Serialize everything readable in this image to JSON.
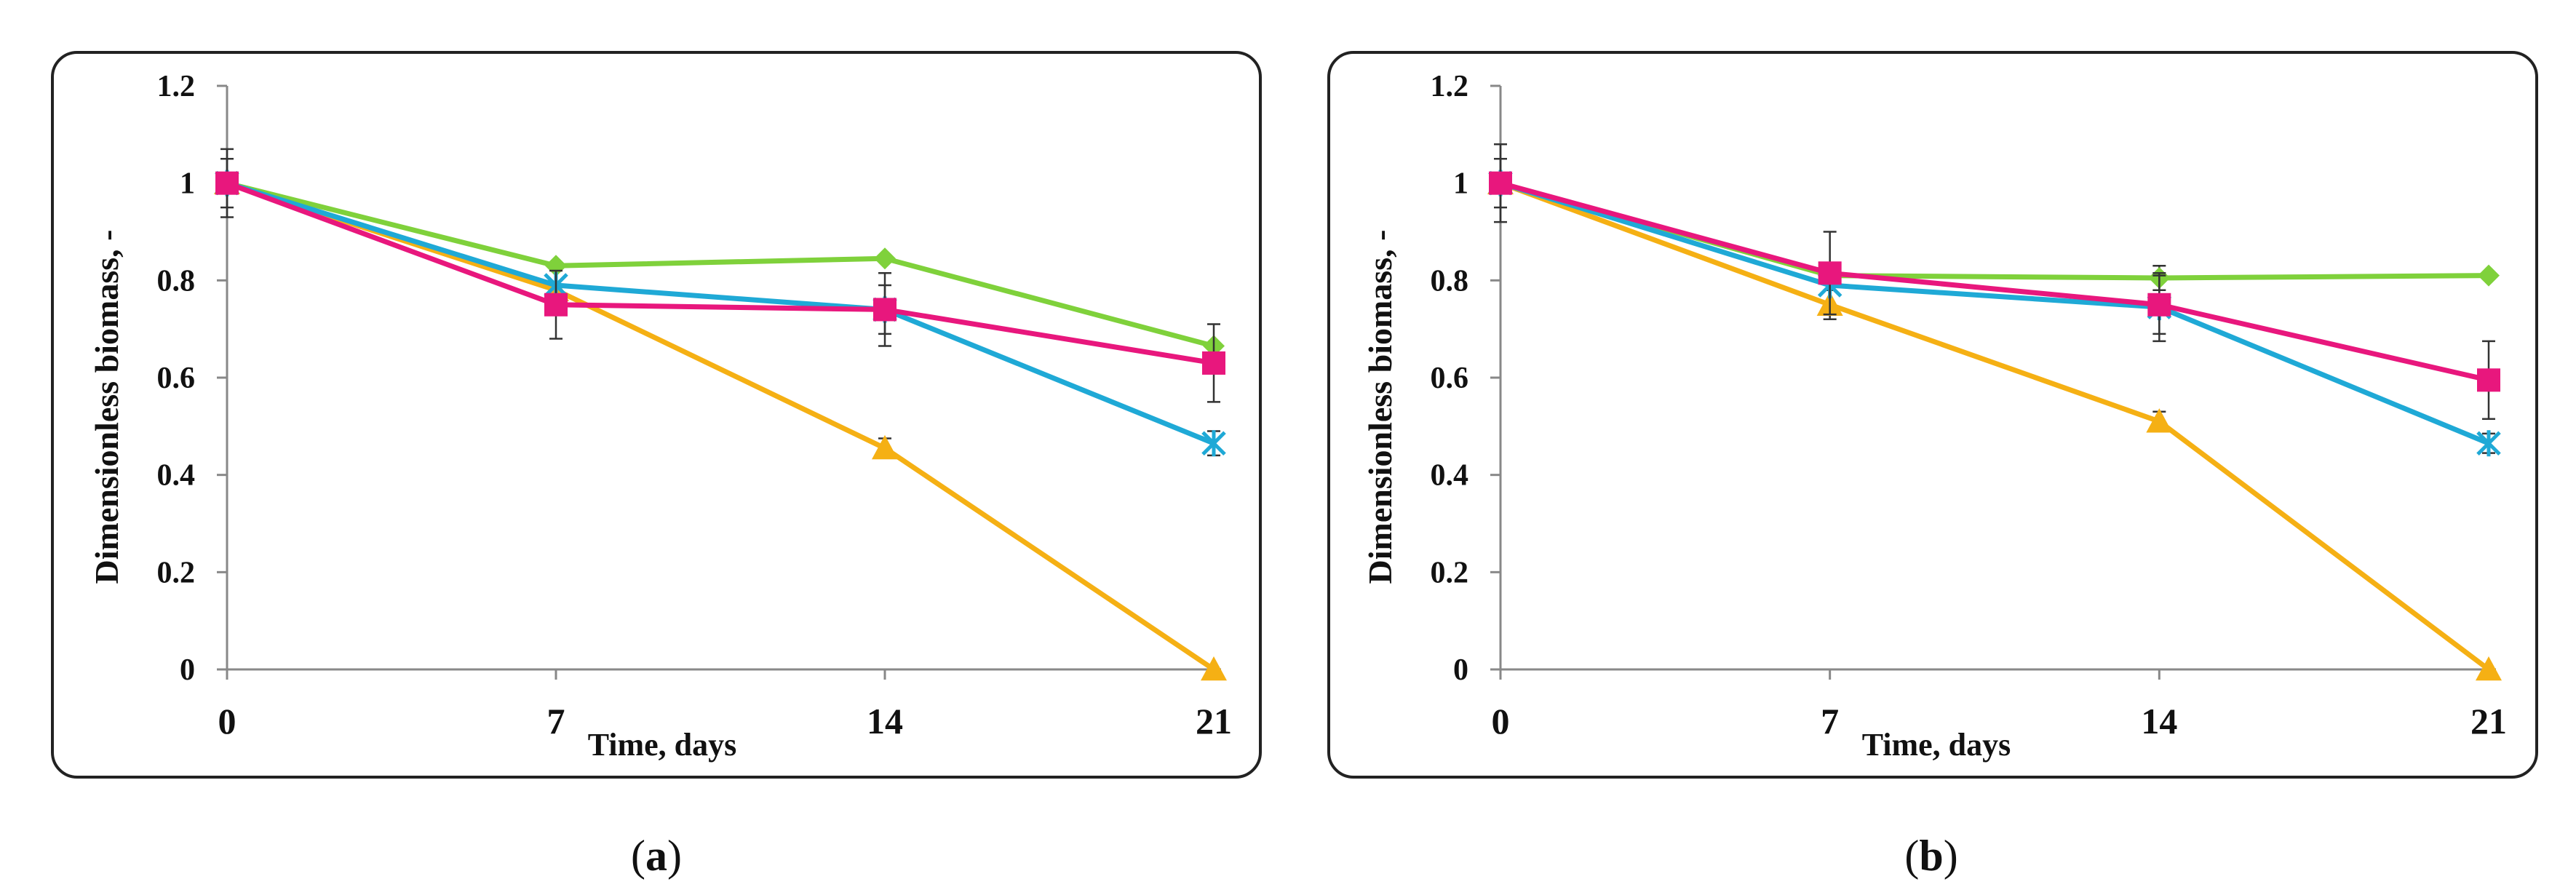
{
  "colors": {
    "green": "#7fd13b",
    "magenta": "#e8177d",
    "cyan": "#1fa9d6",
    "orange": "#f5b014",
    "axis": "#888888",
    "text": "#111111",
    "frame": "#222222",
    "errorbar": "#333333"
  },
  "chart_data": [
    {
      "id": "a",
      "type": "line",
      "caption": {
        "open": "(",
        "letter": "a",
        "close": ")"
      },
      "xlabel": "Time, days",
      "ylabel": "Dimensionless biomass, -",
      "x": [
        0,
        7,
        14,
        21
      ],
      "xticks": [
        "0",
        "7",
        "14",
        "21"
      ],
      "ylim": [
        0,
        1.2
      ],
      "yticks": [
        "0",
        "0.2",
        "0.4",
        "0.6",
        "0.8",
        "1",
        "1.2"
      ],
      "grid": false,
      "legend": null,
      "series": [
        {
          "name": "green",
          "marker": "diamond",
          "color_key": "green",
          "values": [
            1.0,
            0.83,
            0.845,
            0.665
          ],
          "errors": [
            0,
            0,
            0,
            0
          ]
        },
        {
          "name": "orange",
          "marker": "triangle",
          "color_key": "orange",
          "values": [
            1.0,
            0.78,
            0.455,
            0.0
          ],
          "errors": [
            0,
            0,
            0.02,
            0
          ]
        },
        {
          "name": "cyan",
          "marker": "asterisk",
          "color_key": "cyan",
          "values": [
            1.0,
            0.79,
            0.74,
            0.465
          ],
          "errors": [
            0.07,
            0,
            0.05,
            0.025
          ]
        },
        {
          "name": "magenta",
          "marker": "square",
          "color_key": "magenta",
          "values": [
            1.0,
            0.75,
            0.74,
            0.63
          ],
          "errors": [
            0.05,
            0.07,
            0.075,
            0.08
          ]
        }
      ]
    },
    {
      "id": "b",
      "type": "line",
      "caption": {
        "open": "(",
        "letter": "b",
        "close": ")"
      },
      "xlabel": "Time, days",
      "ylabel": "Dimensionless biomass, -",
      "x": [
        0,
        7,
        14,
        21
      ],
      "xticks": [
        "0",
        "7",
        "14",
        "21"
      ],
      "ylim": [
        0,
        1.2
      ],
      "yticks": [
        "0",
        "0.2",
        "0.4",
        "0.6",
        "0.8",
        "1",
        "1.2"
      ],
      "grid": false,
      "legend": null,
      "series": [
        {
          "name": "green",
          "marker": "diamond",
          "color_key": "green",
          "values": [
            1.0,
            0.81,
            0.805,
            0.81
          ],
          "errors": [
            0,
            0,
            0.025,
            0
          ]
        },
        {
          "name": "orange",
          "marker": "triangle",
          "color_key": "orange",
          "values": [
            1.0,
            0.75,
            0.51,
            0.0
          ],
          "errors": [
            0,
            0.03,
            0.02,
            0
          ]
        },
        {
          "name": "cyan",
          "marker": "asterisk",
          "color_key": "cyan",
          "values": [
            1.0,
            0.79,
            0.745,
            0.465
          ],
          "errors": [
            0.08,
            0,
            0.07,
            0.02
          ]
        },
        {
          "name": "magenta",
          "marker": "square",
          "color_key": "magenta",
          "values": [
            1.0,
            0.815,
            0.75,
            0.595
          ],
          "errors": [
            0.05,
            0.085,
            0.06,
            0.08
          ]
        }
      ]
    }
  ]
}
